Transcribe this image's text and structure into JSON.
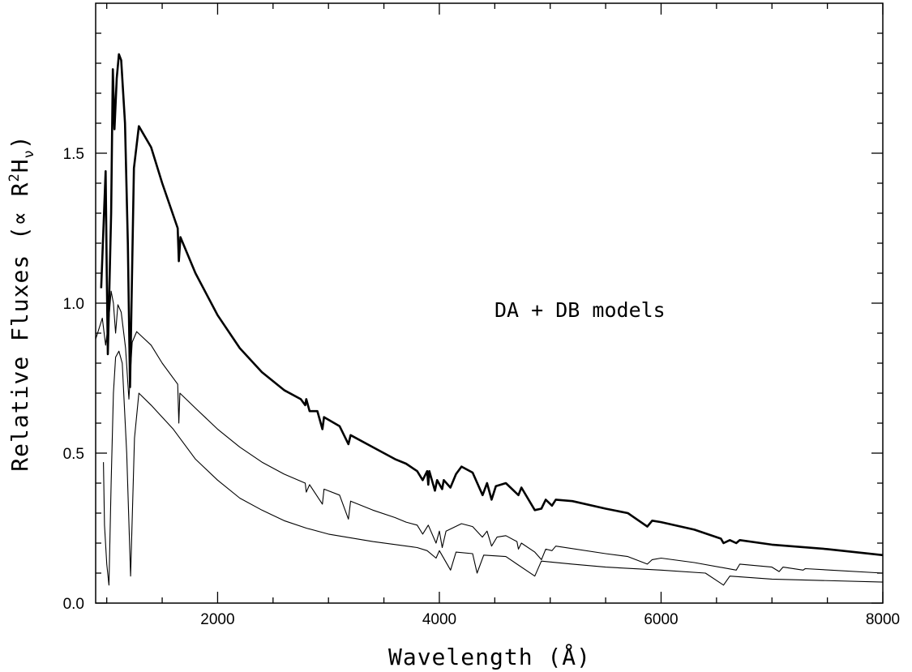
{
  "chart_data": {
    "type": "line",
    "title": "",
    "xlabel": "Wavelength (Å)",
    "ylabel_parts": [
      "Relative Fluxes (",
      "∝",
      " R",
      "2",
      "H",
      "ν",
      ")"
    ],
    "annotation": "DA + DB models",
    "xlim": [
      900,
      8000
    ],
    "ylim": [
      0,
      2.0
    ],
    "x_ticks": [
      2000,
      4000,
      6000,
      8000
    ],
    "x_tick_labels": [
      "2000",
      "4000",
      "6000",
      "8000"
    ],
    "y_ticks": [
      0,
      0.5,
      1.0,
      1.5
    ],
    "y_tick_labels": [
      "0.0",
      "0.5",
      "1.0",
      "1.5"
    ],
    "grid": false,
    "legend": "none",
    "series": [
      {
        "style": "thick",
        "points": [
          [
            950,
            1.05
          ],
          [
            990,
            1.44
          ],
          [
            1000,
            1.1
          ],
          [
            1010,
            0.83
          ],
          [
            1040,
            1.3
          ],
          [
            1055,
            1.78
          ],
          [
            1070,
            1.58
          ],
          [
            1090,
            1.75
          ],
          [
            1110,
            1.83
          ],
          [
            1130,
            1.81
          ],
          [
            1165,
            1.6
          ],
          [
            1190,
            1.2
          ],
          [
            1210,
            0.72
          ],
          [
            1245,
            1.45
          ],
          [
            1290,
            1.59
          ],
          [
            1400,
            1.52
          ],
          [
            1500,
            1.4
          ],
          [
            1640,
            1.25
          ],
          [
            1650,
            1.14
          ],
          [
            1665,
            1.22
          ],
          [
            1800,
            1.1
          ],
          [
            2000,
            0.96
          ],
          [
            2200,
            0.85
          ],
          [
            2400,
            0.77
          ],
          [
            2600,
            0.71
          ],
          [
            2750,
            0.68
          ],
          [
            2790,
            0.66
          ],
          [
            2800,
            0.68
          ],
          [
            2830,
            0.64
          ],
          [
            2900,
            0.64
          ],
          [
            2945,
            0.58
          ],
          [
            2960,
            0.62
          ],
          [
            3100,
            0.59
          ],
          [
            3180,
            0.53
          ],
          [
            3200,
            0.56
          ],
          [
            3400,
            0.52
          ],
          [
            3600,
            0.48
          ],
          [
            3700,
            0.465
          ],
          [
            3800,
            0.44
          ],
          [
            3850,
            0.41
          ],
          [
            3890,
            0.44
          ],
          [
            3900,
            0.395
          ],
          [
            3910,
            0.44
          ],
          [
            3960,
            0.375
          ],
          [
            3980,
            0.41
          ],
          [
            4025,
            0.38
          ],
          [
            4040,
            0.41
          ],
          [
            4100,
            0.385
          ],
          [
            4150,
            0.43
          ],
          [
            4200,
            0.455
          ],
          [
            4300,
            0.435
          ],
          [
            4390,
            0.36
          ],
          [
            4430,
            0.4
          ],
          [
            4471,
            0.345
          ],
          [
            4510,
            0.39
          ],
          [
            4600,
            0.4
          ],
          [
            4713,
            0.36
          ],
          [
            4740,
            0.385
          ],
          [
            4861,
            0.31
          ],
          [
            4920,
            0.315
          ],
          [
            4960,
            0.345
          ],
          [
            5016,
            0.325
          ],
          [
            5050,
            0.345
          ],
          [
            5200,
            0.34
          ],
          [
            5500,
            0.315
          ],
          [
            5700,
            0.3
          ],
          [
            5876,
            0.255
          ],
          [
            5920,
            0.275
          ],
          [
            6000,
            0.27
          ],
          [
            6300,
            0.245
          ],
          [
            6540,
            0.215
          ],
          [
            6563,
            0.2
          ],
          [
            6620,
            0.21
          ],
          [
            6678,
            0.2
          ],
          [
            6710,
            0.21
          ],
          [
            7000,
            0.195
          ],
          [
            7500,
            0.18
          ],
          [
            8000,
            0.16
          ]
        ]
      },
      {
        "style": "thin",
        "points": [
          [
            900,
            0.88
          ],
          [
            960,
            0.95
          ],
          [
            990,
            0.86
          ],
          [
            1020,
            0.95
          ],
          [
            1040,
            1.04
          ],
          [
            1060,
            1.0
          ],
          [
            1080,
            0.9
          ],
          [
            1100,
            0.995
          ],
          [
            1130,
            0.97
          ],
          [
            1170,
            0.85
          ],
          [
            1200,
            0.68
          ],
          [
            1230,
            0.87
          ],
          [
            1270,
            0.905
          ],
          [
            1400,
            0.86
          ],
          [
            1500,
            0.8
          ],
          [
            1640,
            0.73
          ],
          [
            1650,
            0.6
          ],
          [
            1660,
            0.7
          ],
          [
            1800,
            0.65
          ],
          [
            2000,
            0.58
          ],
          [
            2200,
            0.52
          ],
          [
            2400,
            0.47
          ],
          [
            2600,
            0.43
          ],
          [
            2790,
            0.4
          ],
          [
            2800,
            0.37
          ],
          [
            2830,
            0.395
          ],
          [
            2945,
            0.33
          ],
          [
            2960,
            0.38
          ],
          [
            3100,
            0.36
          ],
          [
            3180,
            0.28
          ],
          [
            3200,
            0.34
          ],
          [
            3400,
            0.31
          ],
          [
            3600,
            0.285
          ],
          [
            3700,
            0.27
          ],
          [
            3800,
            0.26
          ],
          [
            3850,
            0.23
          ],
          [
            3900,
            0.26
          ],
          [
            3970,
            0.2
          ],
          [
            4000,
            0.24
          ],
          [
            4026,
            0.185
          ],
          [
            4060,
            0.24
          ],
          [
            4200,
            0.265
          ],
          [
            4300,
            0.255
          ],
          [
            4388,
            0.22
          ],
          [
            4430,
            0.24
          ],
          [
            4471,
            0.19
          ],
          [
            4520,
            0.22
          ],
          [
            4600,
            0.225
          ],
          [
            4700,
            0.205
          ],
          [
            4713,
            0.18
          ],
          [
            4740,
            0.2
          ],
          [
            4861,
            0.17
          ],
          [
            4921,
            0.145
          ],
          [
            4960,
            0.18
          ],
          [
            5016,
            0.175
          ],
          [
            5050,
            0.19
          ],
          [
            5500,
            0.165
          ],
          [
            5700,
            0.155
          ],
          [
            5876,
            0.13
          ],
          [
            5920,
            0.145
          ],
          [
            6000,
            0.15
          ],
          [
            6300,
            0.135
          ],
          [
            6678,
            0.11
          ],
          [
            6710,
            0.13
          ],
          [
            7000,
            0.12
          ],
          [
            7065,
            0.105
          ],
          [
            7100,
            0.12
          ],
          [
            7281,
            0.11
          ],
          [
            7300,
            0.115
          ],
          [
            8000,
            0.1
          ]
        ]
      },
      {
        "style": "thin",
        "points": [
          [
            970,
            0.47
          ],
          [
            980,
            0.26
          ],
          [
            1000,
            0.13
          ],
          [
            1020,
            0.06
          ],
          [
            1040,
            0.4
          ],
          [
            1060,
            0.7
          ],
          [
            1080,
            0.82
          ],
          [
            1110,
            0.84
          ],
          [
            1140,
            0.8
          ],
          [
            1180,
            0.5
          ],
          [
            1215,
            0.09
          ],
          [
            1250,
            0.55
          ],
          [
            1290,
            0.7
          ],
          [
            1400,
            0.66
          ],
          [
            1600,
            0.58
          ],
          [
            1800,
            0.48
          ],
          [
            2000,
            0.41
          ],
          [
            2200,
            0.35
          ],
          [
            2400,
            0.31
          ],
          [
            2600,
            0.275
          ],
          [
            2800,
            0.25
          ],
          [
            3000,
            0.23
          ],
          [
            3400,
            0.205
          ],
          [
            3800,
            0.185
          ],
          [
            3890,
            0.175
          ],
          [
            3970,
            0.15
          ],
          [
            4000,
            0.175
          ],
          [
            4101,
            0.11
          ],
          [
            4150,
            0.17
          ],
          [
            4300,
            0.165
          ],
          [
            4340,
            0.1
          ],
          [
            4400,
            0.16
          ],
          [
            4600,
            0.155
          ],
          [
            4861,
            0.09
          ],
          [
            4920,
            0.14
          ],
          [
            5200,
            0.13
          ],
          [
            5500,
            0.12
          ],
          [
            6000,
            0.11
          ],
          [
            6400,
            0.1
          ],
          [
            6563,
            0.06
          ],
          [
            6620,
            0.09
          ],
          [
            7000,
            0.08
          ],
          [
            8000,
            0.07
          ]
        ]
      }
    ]
  }
}
